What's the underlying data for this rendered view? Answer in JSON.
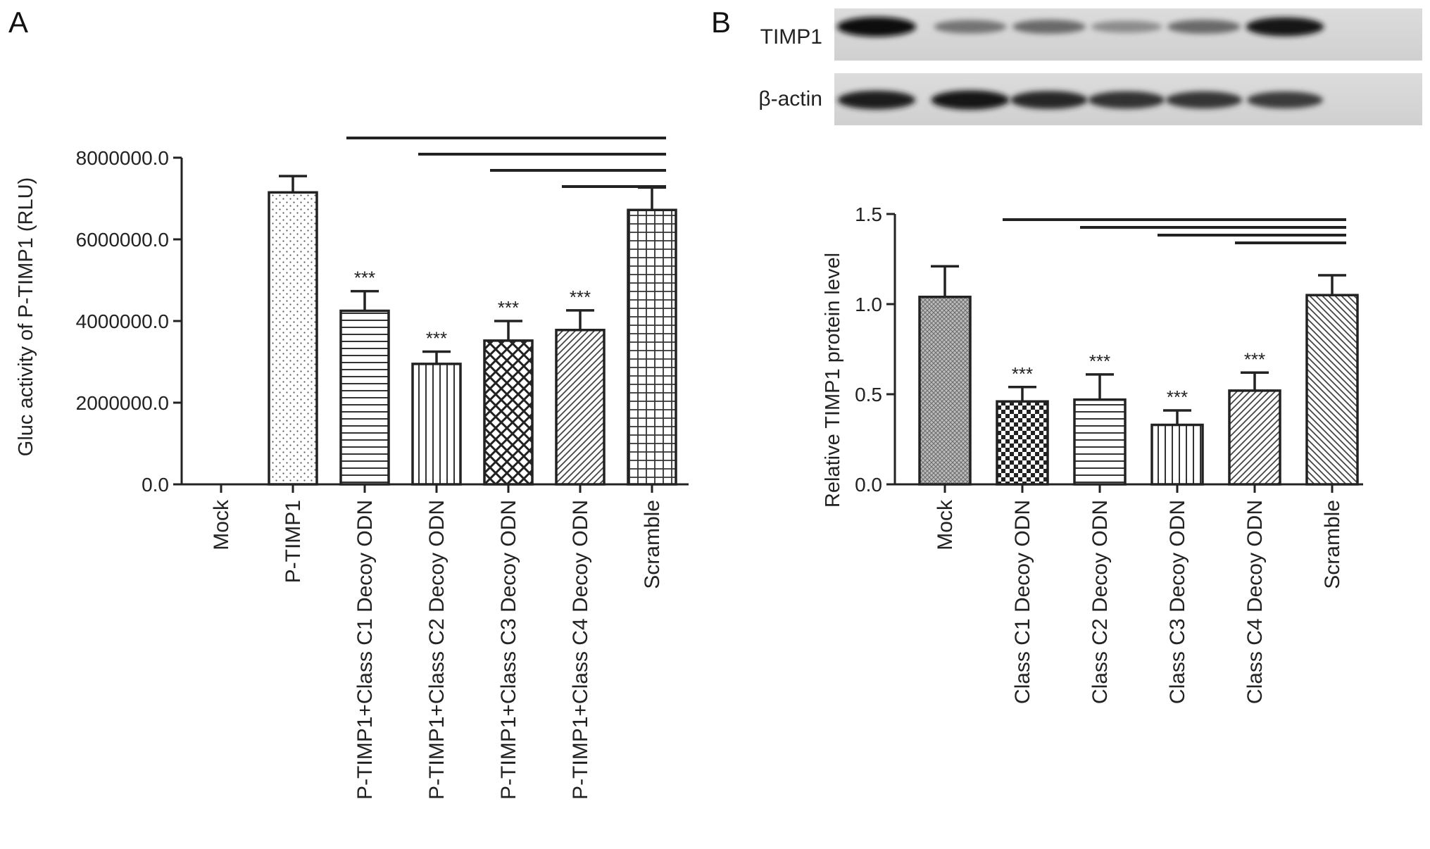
{
  "panels": [
    {
      "letter": "A"
    },
    {
      "letter": "B"
    }
  ],
  "blot": {
    "rows": [
      {
        "label": "TIMP1",
        "intensities": [
          1.0,
          0.45,
          0.5,
          0.32,
          0.5,
          0.92
        ]
      },
      {
        "label": "β-actin",
        "intensities": [
          0.9,
          0.95,
          0.85,
          0.8,
          0.78,
          0.75
        ]
      }
    ]
  },
  "chart_data": [
    {
      "type": "bar",
      "ylabel": "Gluc activity of P-TIMP1 (RLU)",
      "ylim": [
        0,
        8000000
      ],
      "yticks": [
        0,
        2000000,
        4000000,
        6000000,
        8000000
      ],
      "ytick_labels": [
        "0.0",
        "2000000.0",
        "4000000.0",
        "6000000.0",
        "8000000.0"
      ],
      "categories": [
        "Mock",
        "P-TIMP1",
        "P-TIMP1+Class C1 Decoy ODN",
        "P-TIMP1+Class C2 Decoy ODN",
        "P-TIMP1+Class C3 Decoy ODN",
        "P-TIMP1+Class C4 Decoy ODN",
        "Scramble"
      ],
      "values": [
        0,
        7150000,
        4250000,
        2950000,
        3520000,
        3780000,
        6720000
      ],
      "errors": [
        0,
        400000,
        480000,
        300000,
        480000,
        480000,
        550000
      ],
      "patterns": [
        "none",
        "dots",
        "hlines",
        "vlines",
        "crosshatch",
        "diag",
        "grid"
      ],
      "significance": [
        "",
        "",
        "***",
        "***",
        "***",
        "***",
        ""
      ],
      "comparison_lines": [
        {
          "from": 2,
          "to": 6,
          "level": 1
        },
        {
          "from": 3,
          "to": 6,
          "level": 2
        },
        {
          "from": 4,
          "to": 6,
          "level": 3
        },
        {
          "from": 5,
          "to": 6,
          "level": 4
        }
      ]
    },
    {
      "type": "bar",
      "ylabel": "Relative TIMP1 protein level",
      "ylim": [
        0,
        1.5
      ],
      "yticks": [
        0,
        0.5,
        1.0,
        1.5
      ],
      "ytick_labels": [
        "0.0",
        "0.5",
        "1.0",
        "1.5"
      ],
      "categories": [
        "Mock",
        "Class C1 Decoy ODN",
        "Class C2 Decoy ODN",
        "Class C3 Decoy ODN",
        "Class C4 Decoy ODN",
        "Scramble"
      ],
      "values": [
        1.04,
        0.46,
        0.47,
        0.33,
        0.52,
        1.05
      ],
      "errors": [
        0.17,
        0.08,
        0.14,
        0.08,
        0.1,
        0.11
      ],
      "patterns": [
        "fine",
        "checker",
        "hlines",
        "vlines",
        "diag",
        "diag2"
      ],
      "significance": [
        "",
        "***",
        "***",
        "***",
        "***",
        ""
      ],
      "comparison_lines": [
        {
          "from": 1,
          "to": 5,
          "level": 1
        },
        {
          "from": 2,
          "to": 5,
          "level": 2
        },
        {
          "from": 3,
          "to": 5,
          "level": 3
        },
        {
          "from": 4,
          "to": 5,
          "level": 4
        }
      ]
    }
  ]
}
